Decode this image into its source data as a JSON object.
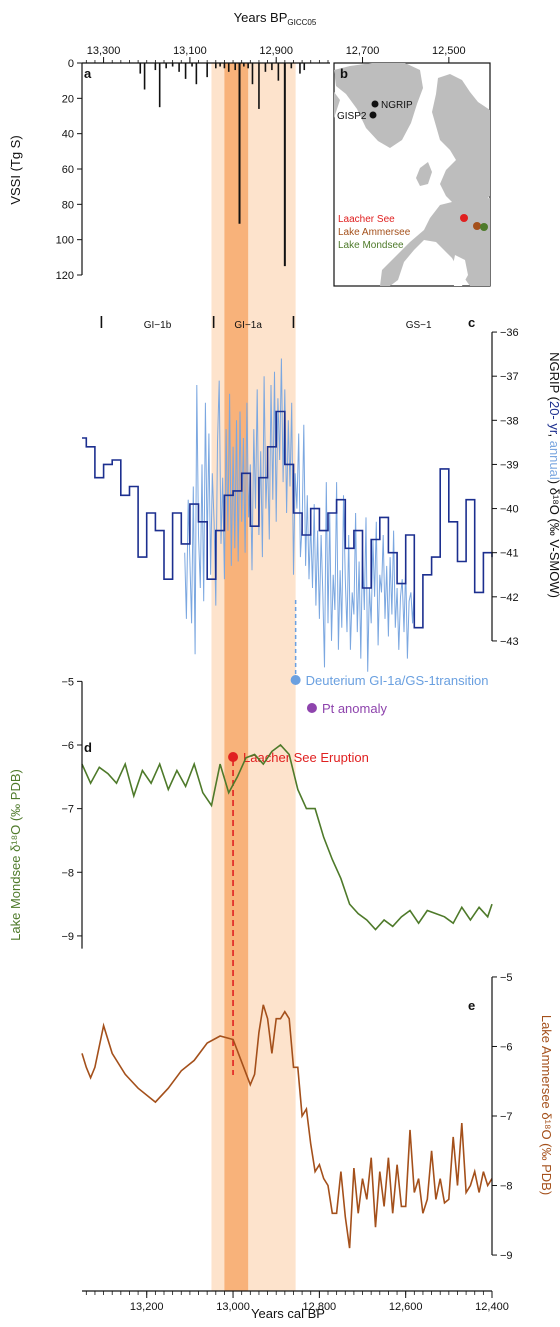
{
  "colors": {
    "band_light": "#fde3cc",
    "band_dark": "#f8b27a",
    "vssi": "#111111",
    "ngrip_20yr": "#1c2f8f",
    "ngrip_annual": "#7ba7e0",
    "mondsee": "#4e7a2a",
    "ammersee": "#a4501b",
    "laacher": "#e02020",
    "pt": "#8e44ad",
    "deuterium": "#6aa0e0",
    "map_land": "#bdbdbd",
    "map_sea": "#ffffff"
  },
  "bands": [
    {
      "from": 13050,
      "to": 12855,
      "shade": "light"
    },
    {
      "from": 13020,
      "to": 12965,
      "shade": "dark"
    }
  ],
  "chart_data": [
    {
      "type": "bar",
      "panel": "a",
      "title": "",
      "xlabel": "Years BP",
      "xlabel_sub": "GICC05",
      "ylabel": "VSSI (Tg S)",
      "xlim": [
        13350,
        12400
      ],
      "ylim": [
        0,
        120
      ],
      "x_ticks": [
        13300,
        13100,
        12900,
        12700,
        12500
      ],
      "x_tick_labels": [
        "13,300",
        "13,100",
        "12,900",
        "12,700",
        "12,500"
      ],
      "y_ticks": [
        0,
        20,
        40,
        60,
        80,
        100,
        120
      ],
      "y_tick_labels": [
        "0",
        "20",
        "40",
        "60",
        "80",
        "100",
        "120"
      ],
      "events": [
        {
          "x": 13215,
          "y": 6
        },
        {
          "x": 13205,
          "y": 15
        },
        {
          "x": 13180,
          "y": 4
        },
        {
          "x": 13170,
          "y": 25
        },
        {
          "x": 13155,
          "y": 3
        },
        {
          "x": 13140,
          "y": 2
        },
        {
          "x": 13125,
          "y": 5
        },
        {
          "x": 13110,
          "y": 9
        },
        {
          "x": 13095,
          "y": 2
        },
        {
          "x": 13085,
          "y": 12
        },
        {
          "x": 13060,
          "y": 8
        },
        {
          "x": 13040,
          "y": 3
        },
        {
          "x": 13030,
          "y": 2
        },
        {
          "x": 13020,
          "y": 3
        },
        {
          "x": 13010,
          "y": 5
        },
        {
          "x": 12995,
          "y": 4
        },
        {
          "x": 12985,
          "y": 91
        },
        {
          "x": 12975,
          "y": 2
        },
        {
          "x": 12965,
          "y": 3
        },
        {
          "x": 12955,
          "y": 12
        },
        {
          "x": 12940,
          "y": 26
        },
        {
          "x": 12925,
          "y": 5
        },
        {
          "x": 12910,
          "y": 4
        },
        {
          "x": 12895,
          "y": 10
        },
        {
          "x": 12880,
          "y": 115
        },
        {
          "x": 12865,
          "y": 3
        },
        {
          "x": 12845,
          "y": 6
        },
        {
          "x": 12835,
          "y": 4
        }
      ]
    },
    {
      "type": "line",
      "panel": "c",
      "ylabel_prefix": "NGRIP (",
      "ylabel_20yr": "20- yr",
      "ylabel_sep": ", ",
      "ylabel_annual": "annual",
      "ylabel_suffix": ") δ¹⁸O (‰ V-SMOW)",
      "xlim": [
        13350,
        12400
      ],
      "ylim": [
        -43.5,
        -35.5
      ],
      "y_ticks": [
        -36,
        -37,
        -38,
        -39,
        -40,
        -41,
        -42,
        -43
      ],
      "y_tick_labels": [
        "−36",
        "−37",
        "−38",
        "−39",
        "−40",
        "−41",
        "−42",
        "−43"
      ],
      "stadials": [
        {
          "label": "GI−1b",
          "x": 13175
        },
        {
          "label": "GI−1a",
          "x": 12965
        },
        {
          "label": "GS−1",
          "x": 12570
        }
      ],
      "stadial_markers": [
        13305,
        13045,
        12860
      ],
      "series": [
        {
          "name": "20- yr",
          "style": "step",
          "x": [
            13350,
            13340,
            13320,
            13300,
            13280,
            13260,
            13240,
            13220,
            13200,
            13180,
            13160,
            13140,
            13120,
            13100,
            13080,
            13060,
            13040,
            13020,
            13000,
            12980,
            12960,
            12940,
            12920,
            12900,
            12880,
            12860,
            12840,
            12820,
            12800,
            12780,
            12760,
            12740,
            12720,
            12700,
            12680,
            12660,
            12640,
            12620,
            12600,
            12580,
            12560,
            12540,
            12520,
            12500,
            12480,
            12460,
            12440,
            12420,
            12400
          ],
          "y": [
            -38.4,
            -38.6,
            -39.3,
            -39.0,
            -38.9,
            -39.7,
            -39.5,
            -41.1,
            -40.1,
            -40.5,
            -41.6,
            -40.1,
            -40.8,
            -39.9,
            -40.3,
            -41.6,
            -40.5,
            -39.7,
            -39.6,
            -39.2,
            -40.4,
            -39.3,
            -38.6,
            -37.8,
            -39.0,
            -40.1,
            -40.6,
            -40.0,
            -40.5,
            -40.1,
            -39.8,
            -40.9,
            -40.5,
            -41.8,
            -40.7,
            -40.2,
            -41.0,
            -41.7,
            -40.6,
            -42.7,
            -41.5,
            -41.1,
            -39.1,
            -40.3,
            -41.2,
            -39.8,
            -41.9,
            -41.0,
            -41.1
          ]
        },
        {
          "name": "annual",
          "style": "line",
          "x": [
            13112,
            13108,
            13104,
            13100,
            13096,
            13092,
            13088,
            13084,
            13080,
            13076,
            13072,
            13068,
            13064,
            13060,
            13056,
            13052,
            13048,
            13044,
            13040,
            13036,
            13032,
            13028,
            13024,
            13020,
            13016,
            13012,
            13008,
            13004,
            13000,
            12996,
            12992,
            12988,
            12984,
            12980,
            12976,
            12972,
            12968,
            12964,
            12960,
            12956,
            12952,
            12948,
            12944,
            12940,
            12936,
            12932,
            12928,
            12924,
            12920,
            12916,
            12912,
            12908,
            12904,
            12900,
            12896,
            12892,
            12888,
            12884,
            12880,
            12876,
            12872,
            12868,
            12864,
            12860,
            12856,
            12852,
            12848,
            12844,
            12840,
            12836,
            12832,
            12828,
            12824,
            12820,
            12816,
            12812,
            12808,
            12804,
            12800,
            12796,
            12792,
            12788,
            12784,
            12780,
            12776,
            12772,
            12768,
            12764,
            12760,
            12756,
            12752,
            12748,
            12744,
            12740,
            12736,
            12732,
            12728,
            12724,
            12720,
            12716,
            12712,
            12708,
            12704,
            12700,
            12696,
            12692,
            12688,
            12684,
            12680,
            12676,
            12672,
            12668,
            12664,
            12660,
            12656,
            12652,
            12648,
            12644,
            12640,
            12636,
            12632,
            12628,
            12624,
            12620,
            12616,
            12612,
            12608,
            12604,
            12600,
            12596,
            12592,
            12588,
            12584,
            12580
          ],
          "y": [
            -41.0,
            -42.5,
            -39.8,
            -41.2,
            -42.6,
            -39.5,
            -43.3,
            -37.2,
            -40.6,
            -41.8,
            -39.0,
            -42.1,
            -37.6,
            -40.9,
            -38.3,
            -41.5,
            -39.2,
            -40.3,
            -42.2,
            -38.5,
            -37.1,
            -40.8,
            -39.3,
            -41.6,
            -38.2,
            -40.5,
            -37.4,
            -41.3,
            -38.6,
            -40.9,
            -38.0,
            -41.2,
            -37.8,
            -40.3,
            -38.4,
            -41.0,
            -37.6,
            -40.2,
            -39.0,
            -41.4,
            -38.2,
            -40.0,
            -37.3,
            -40.6,
            -38.7,
            -41.1,
            -37.0,
            -40.0,
            -38.8,
            -40.7,
            -37.2,
            -39.8,
            -36.9,
            -40.3,
            -37.5,
            -38.9,
            -36.6,
            -39.4,
            -37.3,
            -40.1,
            -38.0,
            -39.5,
            -37.6,
            -41.5,
            -39.2,
            -40.0,
            -38.3,
            -41.1,
            -40.4,
            -38.1,
            -41.3,
            -39.7,
            -41.6,
            -40.3,
            -41.8,
            -39.9,
            -42.2,
            -40.5,
            -42.5,
            -40.6,
            -41.9,
            -43.6,
            -39.4,
            -42.6,
            -40.1,
            -43.0,
            -41.5,
            -42.3,
            -39.4,
            -43.2,
            -41.4,
            -42.7,
            -39.7,
            -41.6,
            -42.8,
            -40.6,
            -43.2,
            -41.9,
            -42.4,
            -40.1,
            -42.8,
            -41.2,
            -43.4,
            -40.9,
            -42.3,
            -40.2,
            -43.7,
            -41.8,
            -42.6,
            -40.7,
            -42.0,
            -40.3,
            -43.1,
            -41.5,
            -41.9,
            -40.6,
            -42.5,
            -41.3,
            -42.9,
            -41.1,
            -42.4,
            -40.5,
            -42.7,
            -41.8,
            -43.2,
            -42.0,
            -41.6,
            -42.8,
            -41.3,
            -43.4,
            -42.1,
            -41.9,
            -42.6,
            -41.7
          ]
        }
      ]
    },
    {
      "type": "line",
      "panel": "d",
      "ylabel": "Lake Mondsee δ¹⁸O (‰ PDB)",
      "xlim": [
        13350,
        12400
      ],
      "ylim": [
        -9.3,
        -4.9
      ],
      "y_ticks": [
        -5,
        -6,
        -7,
        -8,
        -9
      ],
      "y_tick_labels": [
        "−5",
        "−6",
        "−7",
        "−8",
        "−9"
      ],
      "series": [
        {
          "name": "Lake Mondsee",
          "x": [
            13350,
            13330,
            13310,
            13290,
            13270,
            13250,
            13230,
            13210,
            13190,
            13170,
            13150,
            13130,
            13110,
            13090,
            13070,
            13050,
            13030,
            13010,
            12990,
            12970,
            12950,
            12930,
            12910,
            12890,
            12870,
            12850,
            12830,
            12810,
            12790,
            12770,
            12750,
            12730,
            12710,
            12690,
            12670,
            12650,
            12630,
            12610,
            12590,
            12570,
            12550,
            12530,
            12510,
            12490,
            12470,
            12450,
            12430,
            12410,
            12400
          ],
          "y": [
            -6.3,
            -6.6,
            -6.35,
            -6.45,
            -6.6,
            -6.3,
            -6.8,
            -6.4,
            -6.6,
            -6.3,
            -6.7,
            -6.4,
            -6.65,
            -6.3,
            -6.75,
            -6.95,
            -6.3,
            -6.75,
            -6.5,
            -6.2,
            -6.15,
            -6.3,
            -6.1,
            -6.0,
            -6.15,
            -6.7,
            -7.0,
            -7.0,
            -7.45,
            -7.8,
            -8.1,
            -8.5,
            -8.65,
            -8.75,
            -8.9,
            -8.75,
            -8.85,
            -8.7,
            -8.6,
            -8.8,
            -8.6,
            -8.65,
            -8.7,
            -8.8,
            -8.55,
            -8.75,
            -8.55,
            -8.7,
            -8.5
          ]
        }
      ]
    },
    {
      "type": "line",
      "panel": "e",
      "ylabel": "Lake Ammersee δ¹⁸O (‰ PDB)",
      "xlabel": "Years cal BP",
      "xlim": [
        13350,
        12400
      ],
      "ylim": [
        -9.1,
        -4.9
      ],
      "x_ticks": [
        13200,
        13000,
        12800,
        12600,
        12400
      ],
      "x_tick_labels": [
        "13,200",
        "13,000",
        "12,800",
        "12,600",
        "12,400"
      ],
      "y_ticks": [
        -5,
        -6,
        -7,
        -8,
        -9
      ],
      "y_tick_labels": [
        "−5",
        "−6",
        "−7",
        "−8",
        "−9"
      ],
      "series": [
        {
          "name": "Lake Ammersee",
          "x": [
            13350,
            13340,
            13330,
            13320,
            13300,
            13280,
            13250,
            13220,
            13180,
            13150,
            13120,
            13090,
            13060,
            13030,
            13000,
            12960,
            12950,
            12940,
            12930,
            12920,
            12910,
            12900,
            12890,
            12880,
            12870,
            12860,
            12850,
            12840,
            12830,
            12820,
            12810,
            12800,
            12790,
            12780,
            12770,
            12760,
            12750,
            12740,
            12730,
            12720,
            12710,
            12700,
            12690,
            12680,
            12670,
            12660,
            12650,
            12640,
            12630,
            12620,
            12610,
            12600,
            12590,
            12580,
            12570,
            12560,
            12550,
            12540,
            12530,
            12520,
            12510,
            12500,
            12490,
            12480,
            12470,
            12460,
            12450,
            12440,
            12430,
            12420,
            12410,
            12400
          ],
          "y": [
            -6.1,
            -6.3,
            -6.45,
            -6.3,
            -5.7,
            -6.1,
            -6.4,
            -6.6,
            -6.8,
            -6.6,
            -6.35,
            -6.2,
            -5.95,
            -5.85,
            -5.9,
            -6.55,
            -6.4,
            -5.8,
            -5.4,
            -5.6,
            -6.1,
            -5.6,
            -5.6,
            -5.5,
            -5.6,
            -6.3,
            -6.3,
            -7.0,
            -6.9,
            -7.4,
            -7.8,
            -7.7,
            -7.9,
            -8.0,
            -8.4,
            -8.4,
            -7.8,
            -8.45,
            -8.9,
            -7.75,
            -8.4,
            -7.9,
            -8.2,
            -7.6,
            -8.6,
            -7.8,
            -8.3,
            -7.6,
            -8.4,
            -7.7,
            -8.3,
            -8.3,
            -7.2,
            -8.1,
            -7.9,
            -8.4,
            -8.2,
            -7.5,
            -8.2,
            -7.9,
            -8.25,
            -8.2,
            -7.3,
            -8.0,
            -7.1,
            -8.1,
            -8.0,
            -7.8,
            -8.1,
            -7.8,
            -8.0,
            -7.9
          ]
        }
      ]
    }
  ],
  "map": {
    "panel": "b",
    "sites_greenland": [
      {
        "label": "NGRIP",
        "color": "#111111"
      },
      {
        "label": "GISP2",
        "color": "#111111"
      }
    ],
    "legend": [
      {
        "label": "Laacher See",
        "color": "#e02020"
      },
      {
        "label": "Lake Ammersee",
        "color": "#a4501b"
      },
      {
        "label": "Lake Mondsee",
        "color": "#4e7a2a"
      }
    ]
  },
  "annotations": {
    "deuterium": "Deuterium GI-1a/GS-1transition",
    "pt": "Pt anomaly",
    "laacher": "Laacher See Eruption",
    "deuterium_x": 12855,
    "pt_x": 12845,
    "laacher_x": 13000
  },
  "panel_letters": {
    "a": "a",
    "b": "b",
    "c": "c",
    "d": "d",
    "e": "e"
  }
}
